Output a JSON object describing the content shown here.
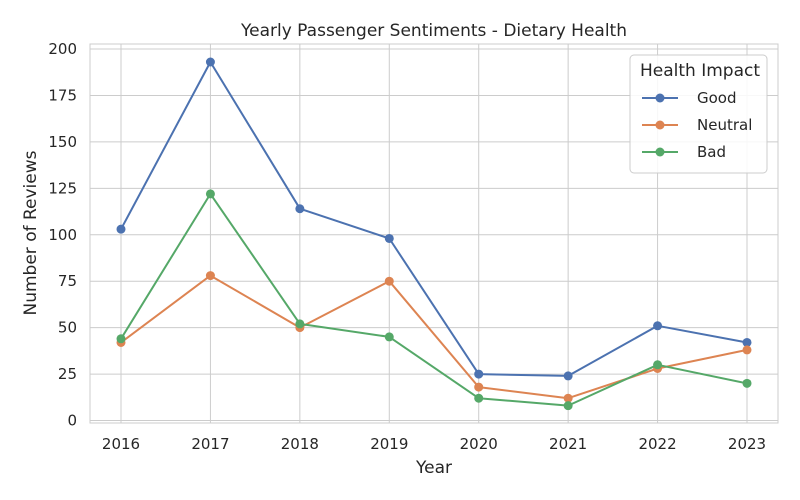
{
  "chart_data": {
    "type": "line",
    "title": "Yearly Passenger Sentiments - Dietary Health",
    "xlabel": "Year",
    "ylabel": "Number of Reviews",
    "x": [
      "2016",
      "2017",
      "2018",
      "2019",
      "2020",
      "2021",
      "2022",
      "2023"
    ],
    "ylim": [
      0,
      200
    ],
    "yticks": [
      0,
      25,
      50,
      75,
      100,
      125,
      150,
      175,
      200
    ],
    "grid": true,
    "legend": {
      "title": "Health Impact",
      "placement": "top-right"
    },
    "series": [
      {
        "name": "Good",
        "color": "#4c72b0",
        "values": [
          103,
          193,
          114,
          98,
          25,
          24,
          51,
          42
        ]
      },
      {
        "name": "Neutral",
        "color": "#dd8452",
        "values": [
          42,
          78,
          50,
          75,
          18,
          12,
          28,
          38
        ]
      },
      {
        "name": "Bad",
        "color": "#55a868",
        "values": [
          44,
          122,
          52,
          45,
          12,
          8,
          30,
          20
        ]
      }
    ]
  }
}
